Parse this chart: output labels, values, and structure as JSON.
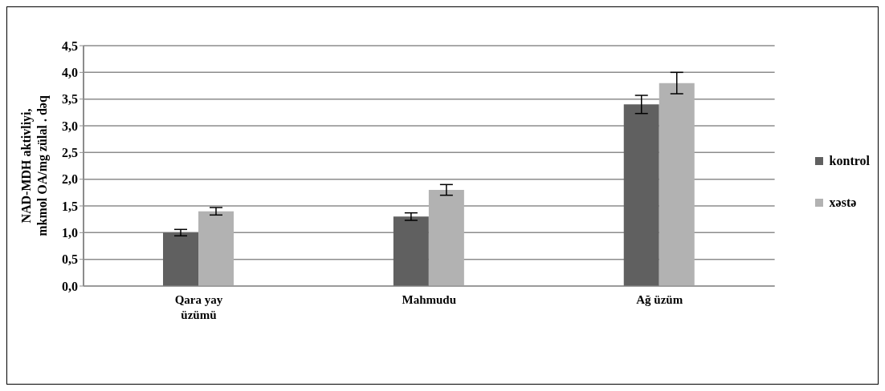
{
  "chart_data": {
    "type": "bar",
    "ylabel": "NAD-MDH aktivliyi, mkmol OA/mg zülal . dəq",
    "categories": [
      "Qara yay üzümü",
      "Mahmudu",
      "Ağ üzüm"
    ],
    "series": [
      {
        "name": "kontrol",
        "color": "#606060",
        "values": [
          1.0,
          1.3,
          3.4
        ],
        "errors": [
          0.06,
          0.07,
          0.17
        ]
      },
      {
        "name": "xəstə",
        "color": "#b2b2b2",
        "values": [
          1.4,
          1.8,
          3.8
        ],
        "errors": [
          0.07,
          0.1,
          0.2
        ]
      }
    ],
    "ylim": [
      0,
      4.5
    ],
    "yticks": [
      {
        "value": 0,
        "label": "0,0"
      },
      {
        "value": 0.5,
        "label": "0,5"
      },
      {
        "value": 1,
        "label": "1,0"
      },
      {
        "value": 1.5,
        "label": "1,5"
      },
      {
        "value": 2,
        "label": "2,0"
      },
      {
        "value": 2.5,
        "label": "2,5"
      },
      {
        "value": 3,
        "label": "3,0"
      },
      {
        "value": 3.5,
        "label": "3,5"
      },
      {
        "value": 4,
        "label": "4,0"
      },
      {
        "value": 4.5,
        "label": "4,5"
      }
    ],
    "grid": "y",
    "legend": "right"
  }
}
